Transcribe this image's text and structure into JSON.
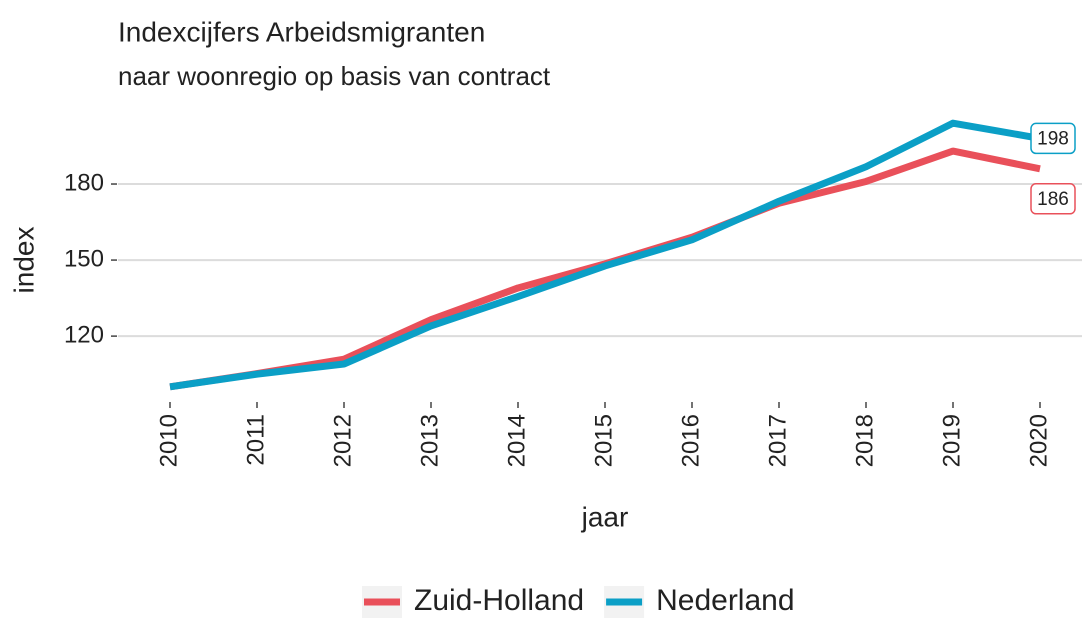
{
  "chart_data": {
    "type": "line",
    "title": "Indexcijfers Arbeidsmigranten",
    "subtitle": "naar woonregio op basis van contract",
    "x_label": "jaar",
    "y_label": "index",
    "categories": [
      "2010",
      "2011",
      "2012",
      "2013",
      "2014",
      "2015",
      "2016",
      "2017",
      "2018",
      "2019",
      "2020"
    ],
    "series": [
      {
        "name": "Zuid-Holland",
        "color": "#e9505a",
        "values": [
          100,
          105.2,
          110.9,
          126.5,
          139,
          148.5,
          159,
          172.4,
          181,
          193,
          186
        ],
        "end_label": "186"
      },
      {
        "name": "Nederland",
        "color": "#0b9fc6",
        "values": [
          100,
          105,
          109,
          124,
          135.6,
          147.7,
          158,
          173.2,
          186.8,
          204,
          198
        ],
        "end_label": "198"
      }
    ],
    "ylim": [
      94.8,
      209.2
    ],
    "yticks": [
      120,
      150,
      180
    ],
    "grid": true,
    "legend": "bottom"
  }
}
